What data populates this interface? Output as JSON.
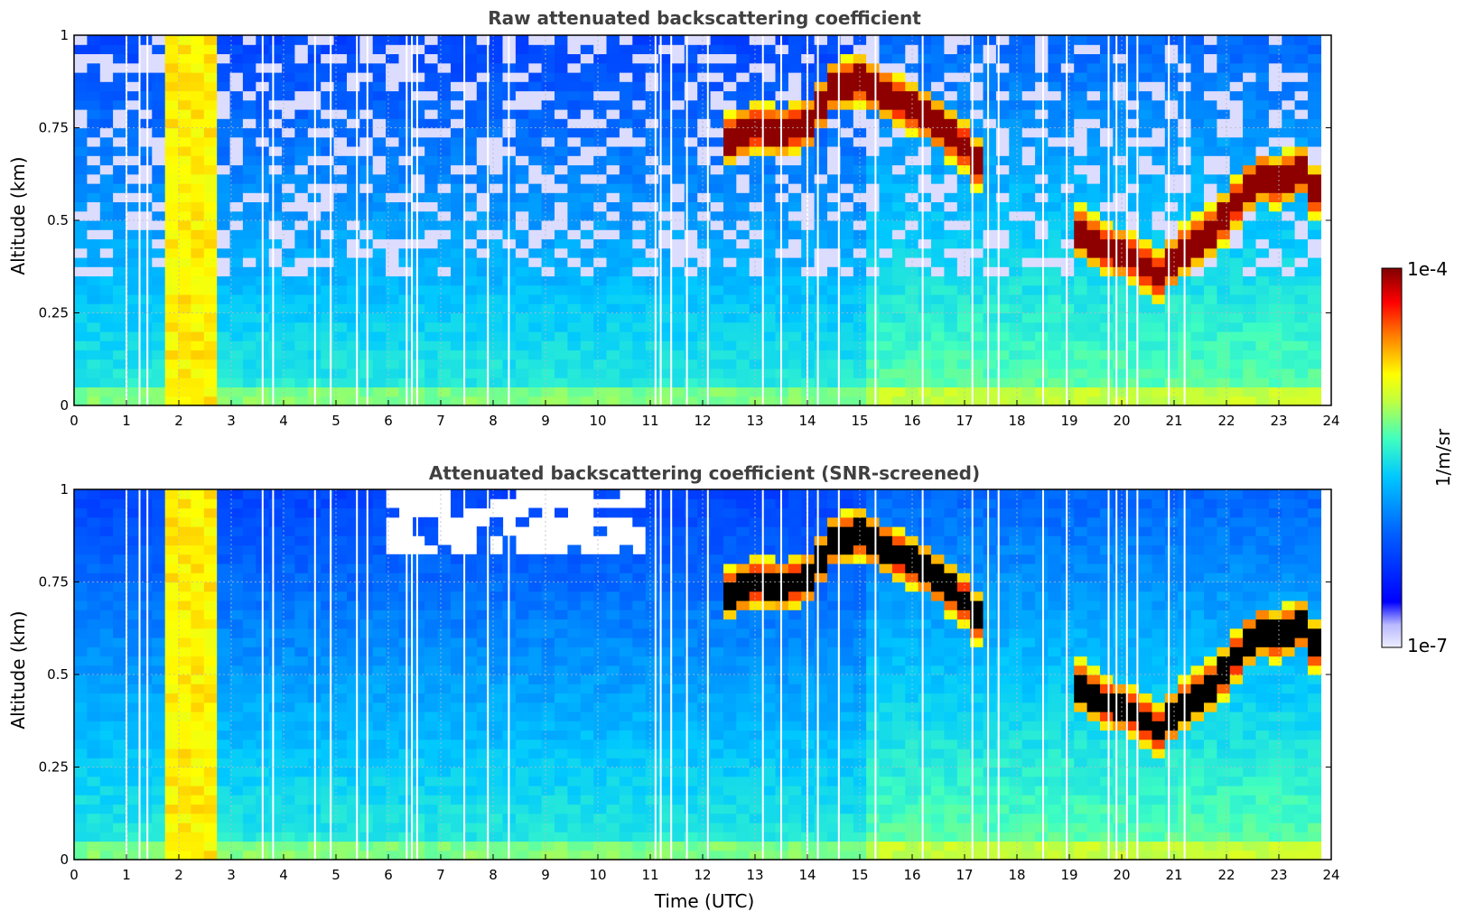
{
  "chart_data": [
    {
      "type": "heatmap",
      "title": "Raw attenuated backscattering coefficient",
      "xlabel": "",
      "ylabel": "Altitude (km)",
      "xlim": [
        0,
        24
      ],
      "ylim": [
        0,
        1
      ],
      "x_ticks": [
        "0",
        "1",
        "2",
        "3",
        "4",
        "5",
        "6",
        "7",
        "8",
        "9",
        "10",
        "11",
        "12",
        "13",
        "14",
        "15",
        "16",
        "17",
        "18",
        "19",
        "20",
        "21",
        "22",
        "23",
        "24"
      ],
      "y_ticks": [
        "0",
        "0.25",
        "0.5",
        "0.75",
        "1"
      ],
      "grid": true,
      "screened": false,
      "colorscale": "jet",
      "gap_times": [
        1.0,
        1.25,
        1.4,
        3.6,
        3.8,
        4.6,
        4.9,
        5.4,
        5.6,
        6.35,
        6.45,
        6.55,
        7.45,
        7.9,
        8.3,
        11.1,
        11.2,
        11.4,
        11.7,
        12.1,
        13.15,
        13.5,
        14.0,
        14.2,
        14.6,
        15.3,
        16.2,
        17.15,
        17.45,
        17.65,
        18.5,
        18.95,
        19.75,
        19.9,
        20.1,
        20.3,
        20.9,
        21.2
      ]
    },
    {
      "type": "heatmap",
      "title": "Attenuated backscattering coefficient (SNR-screened)",
      "xlabel": "Time (UTC)",
      "ylabel": "Altitude (km)",
      "xlim": [
        0,
        24
      ],
      "ylim": [
        0,
        1
      ],
      "x_ticks": [
        "0",
        "1",
        "2",
        "3",
        "4",
        "5",
        "6",
        "7",
        "8",
        "9",
        "10",
        "11",
        "12",
        "13",
        "14",
        "15",
        "16",
        "17",
        "18",
        "19",
        "20",
        "21",
        "22",
        "23",
        "24"
      ],
      "y_ticks": [
        "0",
        "0.25",
        "0.5",
        "0.75",
        "1"
      ],
      "grid": true,
      "screened": true,
      "colorscale": "jet",
      "gap_times": [
        1.0,
        1.25,
        1.4,
        3.6,
        3.8,
        4.6,
        4.9,
        5.4,
        5.6,
        6.35,
        6.45,
        6.55,
        7.45,
        7.9,
        8.3,
        11.1,
        11.2,
        11.4,
        11.7,
        12.1,
        13.15,
        13.5,
        14.0,
        14.2,
        14.6,
        15.3,
        16.2,
        17.15,
        17.45,
        17.65,
        18.5,
        18.95,
        19.75,
        19.9,
        20.1,
        20.3,
        20.9,
        21.2
      ]
    }
  ],
  "colorbar": {
    "label": "1/m/sr",
    "max_label": "1e-4",
    "min_label": "1e-7",
    "range": [
      1e-07,
      0.0001
    ],
    "scale": "log",
    "high_color": "#800000",
    "low_color": "#eeeeff"
  },
  "features": {
    "rain_time_range": [
      1.85,
      2.75
    ],
    "data_end_time": 23.8,
    "cloud_layer": [
      [
        12.5,
        0.72
      ],
      [
        13.0,
        0.75
      ],
      [
        13.5,
        0.74
      ],
      [
        14.0,
        0.76
      ],
      [
        14.5,
        0.86
      ],
      [
        15.0,
        0.88
      ],
      [
        16.3,
        0.78
      ],
      [
        17.0,
        0.7
      ],
      [
        17.3,
        0.64
      ],
      [
        19.1,
        0.48
      ],
      [
        19.6,
        0.43
      ],
      [
        20.2,
        0.4
      ],
      [
        20.7,
        0.35
      ],
      [
        21.2,
        0.42
      ],
      [
        21.8,
        0.48
      ],
      [
        22.2,
        0.55
      ],
      [
        22.6,
        0.62
      ],
      [
        23.0,
        0.6
      ],
      [
        23.4,
        0.64
      ],
      [
        23.8,
        0.55
      ]
    ]
  }
}
